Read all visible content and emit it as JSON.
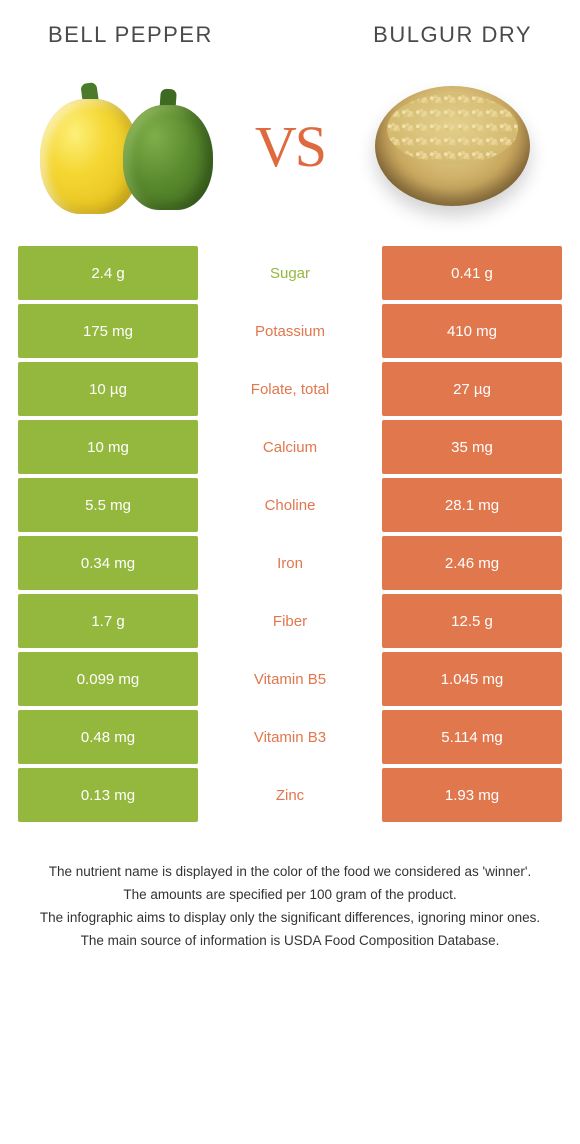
{
  "header": {
    "left": "Bell pepper",
    "right": "Bulgur dry"
  },
  "vs_label": "VS",
  "colors": {
    "left": "#94b83d",
    "right": "#e1774d",
    "vs": "#e06a3f",
    "background": "#ffffff"
  },
  "rows": [
    {
      "nutrient": "Sugar",
      "left": "2.4 g",
      "right": "0.41 g",
      "winner": "left"
    },
    {
      "nutrient": "Potassium",
      "left": "175 mg",
      "right": "410 mg",
      "winner": "right"
    },
    {
      "nutrient": "Folate, total",
      "left": "10 µg",
      "right": "27 µg",
      "winner": "right"
    },
    {
      "nutrient": "Calcium",
      "left": "10 mg",
      "right": "35 mg",
      "winner": "right"
    },
    {
      "nutrient": "Choline",
      "left": "5.5 mg",
      "right": "28.1 mg",
      "winner": "right"
    },
    {
      "nutrient": "Iron",
      "left": "0.34 mg",
      "right": "2.46 mg",
      "winner": "right"
    },
    {
      "nutrient": "Fiber",
      "left": "1.7 g",
      "right": "12.5 g",
      "winner": "right"
    },
    {
      "nutrient": "Vitamin B5",
      "left": "0.099 mg",
      "right": "1.045 mg",
      "winner": "right"
    },
    {
      "nutrient": "Vitamin B3",
      "left": "0.48 mg",
      "right": "5.114 mg",
      "winner": "right"
    },
    {
      "nutrient": "Zinc",
      "left": "0.13 mg",
      "right": "1.93 mg",
      "winner": "right"
    }
  ],
  "footnotes": [
    "The nutrient name is displayed in the color of the food we considered as 'winner'.",
    "The amounts are specified per 100 gram of the product.",
    "The infographic aims to display only the significant differences, ignoring minor ones.",
    "The main source of information is USDA Food Composition Database."
  ]
}
